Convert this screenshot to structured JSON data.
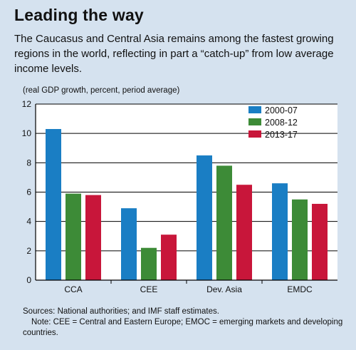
{
  "title": "Leading the way",
  "subtitle": "The Caucasus and Central Asia remains among the fastest growing regions in the world, reflecting in part a “catch-up” from low average income levels.",
  "units": "(real GDP growth, percent, period average)",
  "sources": "Sources: National authorities; and IMF staff estimates.",
  "note": "Note: CEE = Central and Eastern Europe; EMOC = emerging markets and developing countries.",
  "colors": {
    "background": "#d5e2ef",
    "plot_bg": "#ffffff",
    "series_1": "#1a7ec4",
    "series_2": "#3d8b37",
    "series_3": "#c8163a"
  },
  "chart_data": {
    "type": "bar",
    "categories": [
      "CCA",
      "CEE",
      "Dev. Asia",
      "EMDC"
    ],
    "series": [
      {
        "name": "2000-07",
        "values": [
          10.3,
          4.9,
          8.5,
          6.6
        ]
      },
      {
        "name": "2008-12",
        "values": [
          5.9,
          2.2,
          7.8,
          5.5
        ]
      },
      {
        "name": "2013-17",
        "values": [
          5.8,
          3.1,
          6.5,
          5.2
        ]
      }
    ],
    "ylim": [
      0,
      12
    ],
    "yticks": [
      0,
      2,
      4,
      6,
      8,
      10,
      12
    ],
    "grid": true,
    "legend": "top-right",
    "xlabel": "",
    "ylabel": ""
  }
}
